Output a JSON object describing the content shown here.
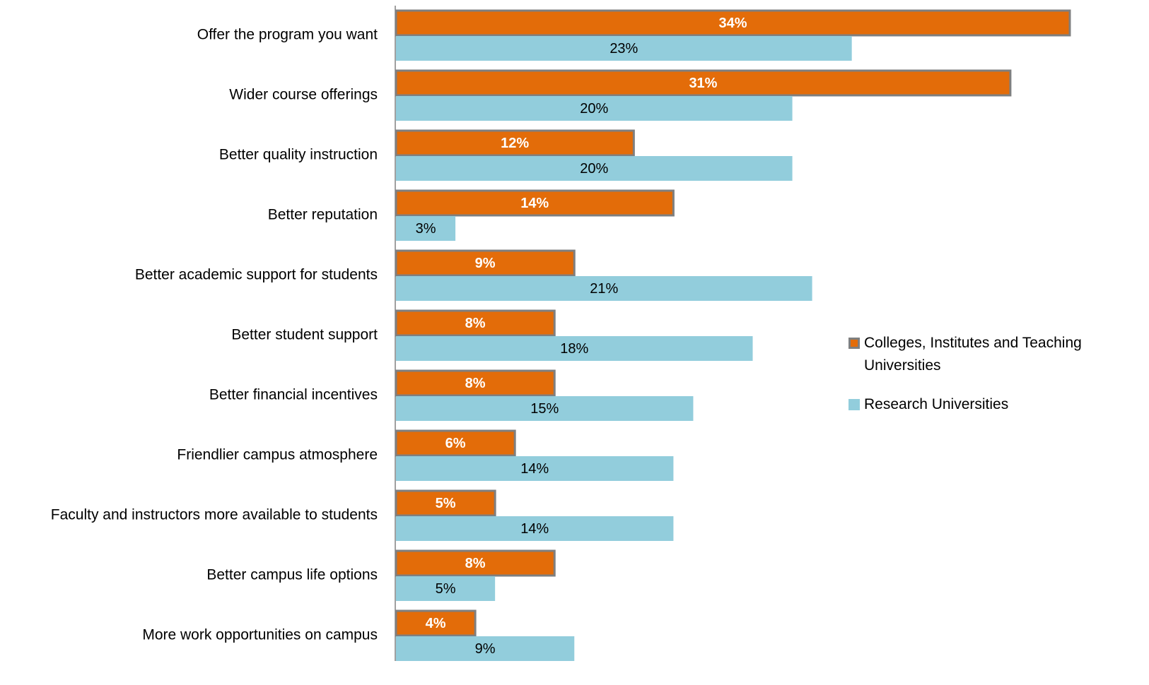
{
  "chart_data": {
    "type": "bar",
    "orientation": "horizontal",
    "categories": [
      "Offer the program you want",
      "Wider course offerings",
      "Better quality instruction",
      "Better reputation",
      "Better academic support for students",
      "Better student support",
      "Better financial incentives",
      "Friendlier campus atmosphere",
      "Faculty and instructors more available to students",
      "Better campus life options",
      "More work opportunities on campus"
    ],
    "series": [
      {
        "name": "Colleges, Institutes and Teaching Universities",
        "color": "#e36c09",
        "values": [
          34,
          31,
          12,
          14,
          9,
          8,
          8,
          6,
          5,
          8,
          4
        ],
        "value_labels": [
          "34%",
          "31%",
          "12%",
          "14%",
          "9%",
          "8%",
          "8%",
          "6%",
          "5%",
          "8%",
          "4%"
        ]
      },
      {
        "name": "Research Universities",
        "color": "#92cddc",
        "values": [
          23,
          20,
          20,
          3,
          21,
          18,
          15,
          14,
          14,
          5,
          9
        ],
        "value_labels": [
          "23%",
          "20%",
          "20%",
          "3%",
          "21%",
          "18%",
          "15%",
          "14%",
          "14%",
          "5%",
          "9%"
        ]
      }
    ]
  }
}
